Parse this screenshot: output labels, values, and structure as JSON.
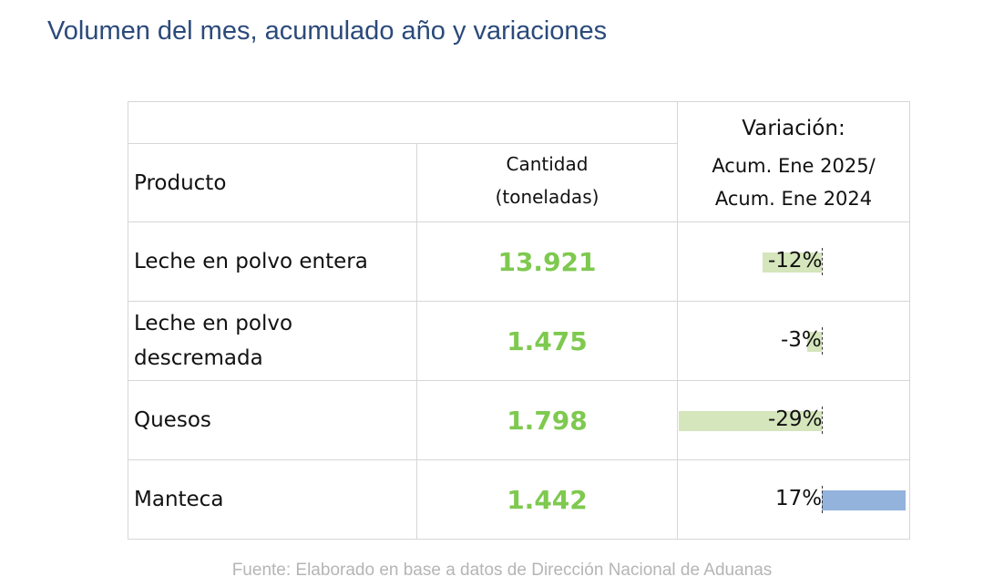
{
  "title": "Volumen del mes, acumulado año y variaciones",
  "table": {
    "header": {
      "variacion_title": "Variación:",
      "producto": "Producto",
      "cantidad_line1": "Cantidad",
      "cantidad_line2": "(toneladas)",
      "variacion_line1": "Acum. Ene 2025/",
      "variacion_line2": "Acum. Ene 2024"
    },
    "rows": [
      {
        "producto_line1": "Leche en polvo entera",
        "producto_line2": "",
        "cantidad": "13.921",
        "variacion_label": "-12%",
        "variacion_value": -12
      },
      {
        "producto_line1": "Leche en polvo",
        "producto_line2": "descremada",
        "cantidad": "1.475",
        "variacion_label": "-3%",
        "variacion_value": -3
      },
      {
        "producto_line1": "Quesos",
        "producto_line2": "",
        "cantidad": "1.798",
        "variacion_label": "-29%",
        "variacion_value": -29
      },
      {
        "producto_line1": "Manteca",
        "producto_line2": "",
        "cantidad": "1.442",
        "variacion_label": "17%",
        "variacion_value": 17
      }
    ],
    "colors": {
      "quantity": "#7ec94f",
      "negative_bar": "#d5e5bc",
      "positive_bar": "#93b3dc"
    }
  },
  "source": "Fuente: Elaborado en base a datos de Dirección Nacional de Aduanas"
}
